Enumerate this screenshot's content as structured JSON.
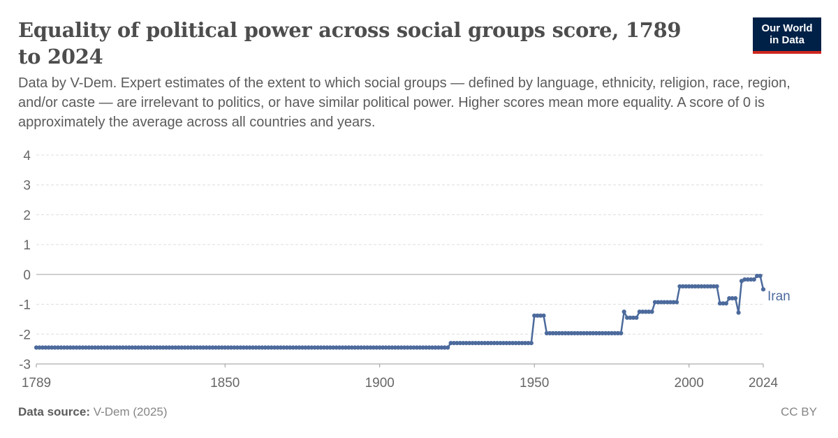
{
  "header": {
    "title": "Equality of political power across social groups score, 1789 to 2024",
    "subtitle": "Data by V-Dem. Expert estimates of the extent to which social groups — defined by language, ethnicity, religion, race, region, and/or caste — are irrelevant to politics, or have similar political power. Higher scores mean more equality. A score of 0 is approximately the average across all countries and years."
  },
  "logo": {
    "line1": "Our World",
    "line2": "in Data"
  },
  "footer": {
    "source_label": "Data source:",
    "source_value": "V-Dem (2025)",
    "license": "CC BY"
  },
  "colors": {
    "series": "#4c6a9c",
    "grid": "#dddddd",
    "zero_line": "#a1a1a1",
    "axis_text": "#666666"
  },
  "chart_data": {
    "type": "line",
    "title": "Equality of political power across social groups score, 1789 to 2024",
    "xlabel": "",
    "ylabel": "",
    "xlim": [
      1789,
      2024
    ],
    "ylim": [
      -3,
      4
    ],
    "x_ticks": [
      1789,
      1850,
      1900,
      1950,
      2000,
      2024
    ],
    "y_ticks": [
      -3,
      -2,
      -1,
      0,
      1,
      2,
      3,
      4
    ],
    "grid": true,
    "legend": "inline label at line end",
    "series": [
      {
        "name": "Iran",
        "color": "#4c6a9c",
        "segments": [
          {
            "from": 1789,
            "to": 1922,
            "value": -2.45
          },
          {
            "from": 1923,
            "to": 1949,
            "value": -2.3
          },
          {
            "from": 1950,
            "to": 1953,
            "value": -1.38
          },
          {
            "from": 1954,
            "to": 1978,
            "value": -1.97
          },
          {
            "from": 1979,
            "to": 1979,
            "value": -1.25
          },
          {
            "from": 1980,
            "to": 1983,
            "value": -1.45
          },
          {
            "from": 1984,
            "to": 1988,
            "value": -1.25
          },
          {
            "from": 1989,
            "to": 1996,
            "value": -0.93
          },
          {
            "from": 1997,
            "to": 2009,
            "value": -0.4
          },
          {
            "from": 2010,
            "to": 2012,
            "value": -0.97
          },
          {
            "from": 2013,
            "to": 2015,
            "value": -0.8
          },
          {
            "from": 2016,
            "to": 2016,
            "value": -1.28
          },
          {
            "from": 2017,
            "to": 2017,
            "value": -0.22
          },
          {
            "from": 2018,
            "to": 2021,
            "value": -0.17
          },
          {
            "from": 2022,
            "to": 2023,
            "value": -0.05
          },
          {
            "from": 2024,
            "to": 2024,
            "value": -0.5
          }
        ]
      }
    ]
  }
}
